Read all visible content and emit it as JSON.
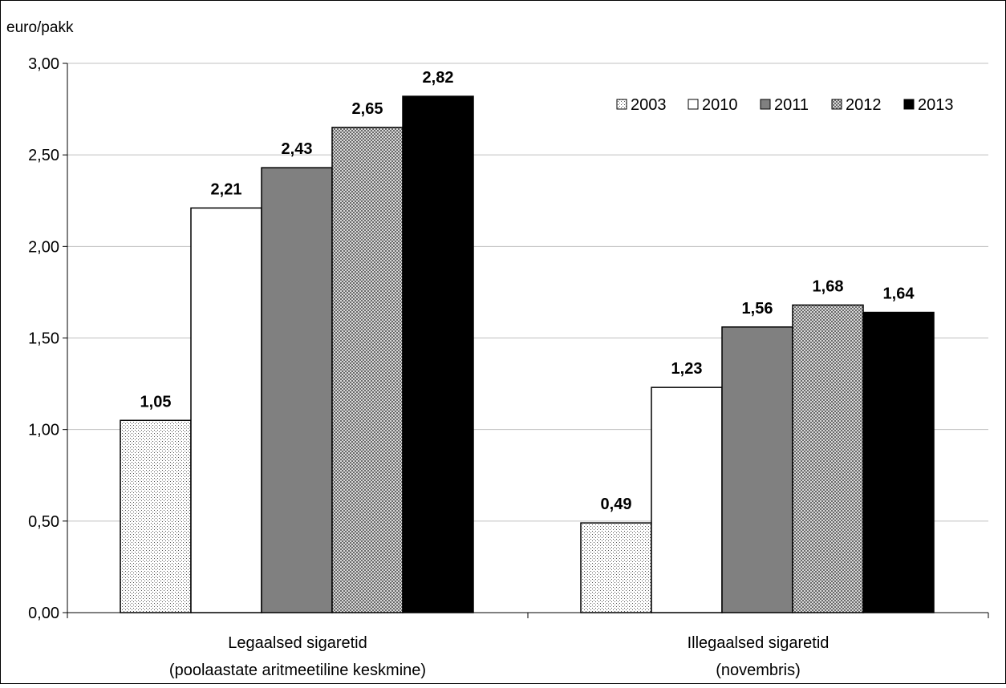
{
  "chart_data": {
    "type": "bar",
    "ylabel": "euro/pakk",
    "ylim": [
      0,
      3
    ],
    "yticks": [
      "0,00",
      "0,50",
      "1,00",
      "1,50",
      "2,00",
      "2,50",
      "3,00"
    ],
    "grid": true,
    "legend_position": "top-right",
    "categories": [
      [
        "Legaalsed sigaretid",
        "(poolaastate aritmeetiline keskmine)"
      ],
      [
        "Illegaalsed sigaretid",
        "(novembris)"
      ]
    ],
    "series": [
      {
        "name": "2003",
        "values": [
          1.05,
          0.49
        ],
        "labels": [
          "1,05",
          "0,49"
        ],
        "fill": "dots"
      },
      {
        "name": "2010",
        "values": [
          2.21,
          1.23
        ],
        "labels": [
          "2,21",
          "1,23"
        ],
        "fill": "#ffffff"
      },
      {
        "name": "2011",
        "values": [
          2.43,
          1.56
        ],
        "labels": [
          "2,43",
          "1,56"
        ],
        "fill": "#808080"
      },
      {
        "name": "2012",
        "values": [
          2.65,
          1.68
        ],
        "labels": [
          "2,65",
          "1,68"
        ],
        "fill": "checker"
      },
      {
        "name": "2013",
        "values": [
          2.82,
          1.64
        ],
        "labels": [
          "2,82",
          "1,64"
        ],
        "fill": "#000000"
      }
    ]
  }
}
